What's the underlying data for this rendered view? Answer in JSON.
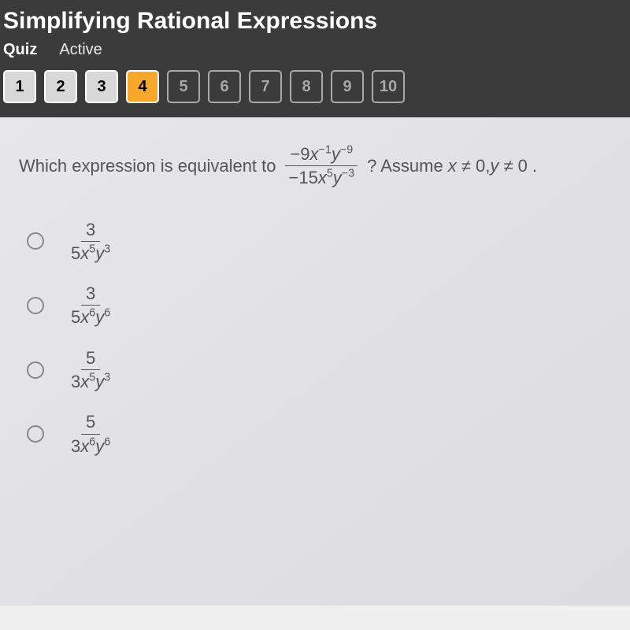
{
  "header": {
    "title": "Simplifying Rational Expressions",
    "tabs": {
      "primary": "Quiz",
      "secondary": "Active"
    }
  },
  "nav": {
    "items": [
      {
        "label": "1",
        "state": "answered"
      },
      {
        "label": "2",
        "state": "answered"
      },
      {
        "label": "3",
        "state": "answered"
      },
      {
        "label": "4",
        "state": "current"
      },
      {
        "label": "5",
        "state": "unvisited"
      },
      {
        "label": "6",
        "state": "unvisited"
      },
      {
        "label": "7",
        "state": "unvisited"
      },
      {
        "label": "8",
        "state": "unvisited"
      },
      {
        "label": "9",
        "state": "unvisited"
      },
      {
        "label": "10",
        "state": "unvisited"
      }
    ]
  },
  "question": {
    "lead": "Which expression is equivalent to",
    "fraction": {
      "numerator": {
        "coeff": "−9",
        "x_exp": "−1",
        "y_exp": "−9"
      },
      "denominator": {
        "coeff": "−15",
        "x_exp": "5",
        "y_exp": "−3"
      }
    },
    "tail_q": "? Assume",
    "assume": {
      "x": "x ≠ 0",
      "sep": ",",
      "y": "y ≠ 0"
    },
    "period": "."
  },
  "options": [
    {
      "num": "3",
      "den_coeff": "5",
      "x_exp": "5",
      "y_exp": "3"
    },
    {
      "num": "3",
      "den_coeff": "5",
      "x_exp": "6",
      "y_exp": "6"
    },
    {
      "num": "5",
      "den_coeff": "3",
      "x_exp": "5",
      "y_exp": "3"
    },
    {
      "num": "5",
      "den_coeff": "3",
      "x_exp": "6",
      "y_exp": "6"
    }
  ],
  "colors": {
    "header_bg": "#3b3b3b",
    "content_bg": "#e6e6e8",
    "current_btn": "#f7a82b",
    "answered_btn": "#d8d8d8",
    "text": "#555555"
  }
}
